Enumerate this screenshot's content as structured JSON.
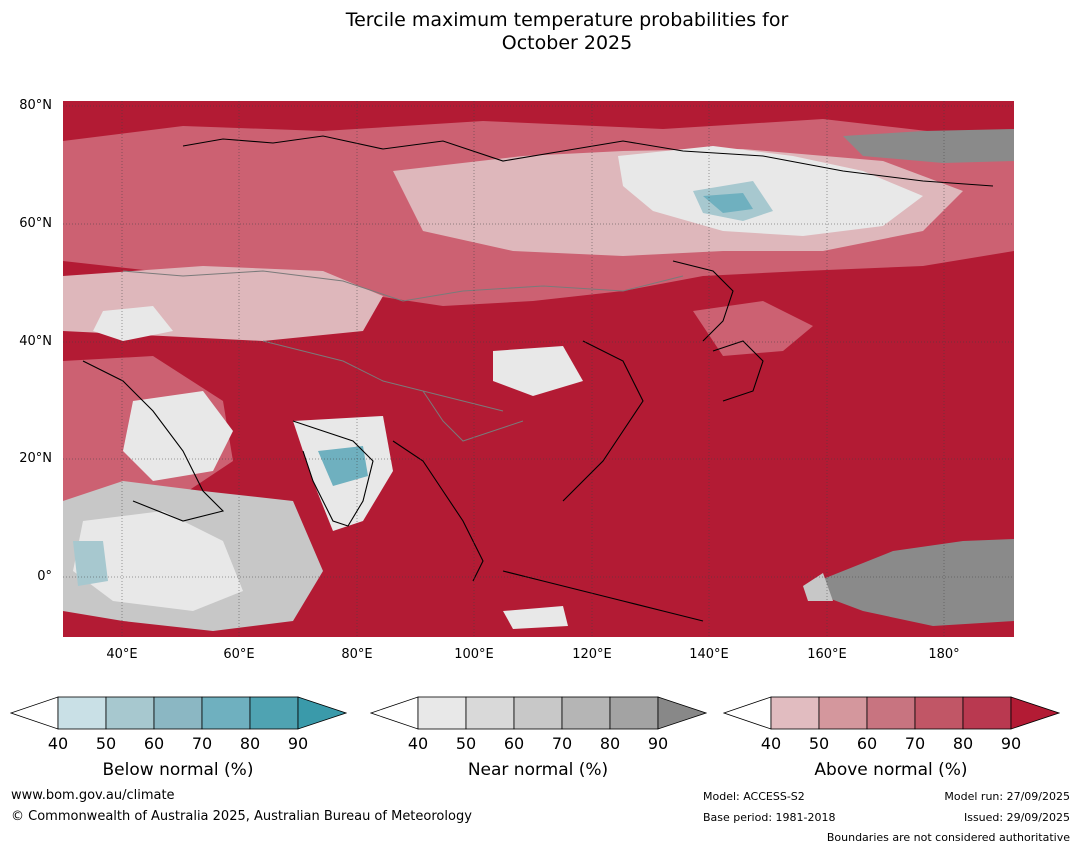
{
  "title": {
    "line1": "Tercile maximum temperature probabilities for",
    "line2": "October 2025"
  },
  "map": {
    "lat_labels": [
      "80°N",
      "60°N",
      "40°N",
      "20°N",
      "0°"
    ],
    "lon_labels": [
      "40°E",
      "60°E",
      "80°E",
      "100°E",
      "120°E",
      "140°E",
      "160°E",
      "180°"
    ],
    "colors": {
      "ocean_base": "#b31b34",
      "above_90": "#b31b34",
      "above_80": "#c03a4d",
      "above_70": "#cc6172",
      "above_60": "#d4878f",
      "above_50": "#deb7bb",
      "near_40": "#e8e8e8",
      "near_60": "#c7c7c7",
      "near_80": "#8a8a8a",
      "below_50": "#a7c8cf",
      "below_70": "#6fb0bf",
      "below_90": "#3a9aaa",
      "coast": "#000000",
      "border": "#7a7a7a"
    }
  },
  "colorbars": [
    {
      "id": "below",
      "label": "Below normal (%)",
      "ticks": [
        "40",
        "50",
        "60",
        "70",
        "80",
        "90"
      ],
      "colors": [
        "#c9e0e6",
        "#a7c8cf",
        "#8bb7c3",
        "#6fb0bf",
        "#4fa3b2",
        "#3a9aaa"
      ]
    },
    {
      "id": "near",
      "label": "Near normal (%)",
      "ticks": [
        "40",
        "50",
        "60",
        "70",
        "80",
        "90"
      ],
      "colors": [
        "#e8e8e8",
        "#d9d9d9",
        "#c8c8c8",
        "#b5b5b5",
        "#a3a3a3",
        "#888888"
      ]
    },
    {
      "id": "above",
      "label": "Above normal (%)",
      "ticks": [
        "40",
        "50",
        "60",
        "70",
        "80",
        "90"
      ],
      "colors": [
        "#e1bcc0",
        "#d4979d",
        "#c87480",
        "#c15666",
        "#b93950",
        "#b31b34"
      ]
    }
  ],
  "footer": {
    "website": "www.bom.gov.au/climate",
    "copyright": "© Commonwealth of Australia 2025, Australian Bureau of Meteorology",
    "model": "Model: ACCESS-S2",
    "base_period": "Base period: 1981-2018",
    "model_run": "Model run: 27/09/2025",
    "issued": "Issued: 29/09/2025",
    "disclaimer": "Boundaries are not considered authoritative"
  }
}
